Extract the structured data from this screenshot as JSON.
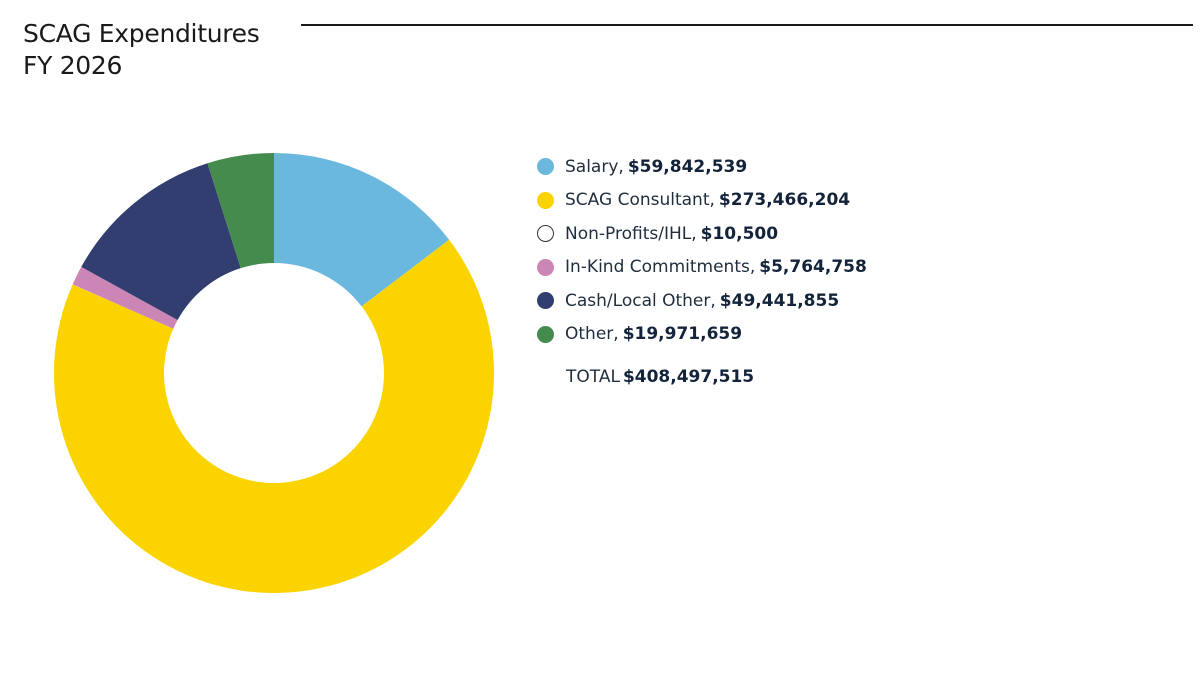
{
  "title_line1": "SCAG Expenditures",
  "title_line2": "FY 2026",
  "chart_data": {
    "type": "pie",
    "donut": true,
    "title": "SCAG Expenditures FY 2026",
    "legend_position": "right",
    "categories": [
      "Salary",
      "SCAG Consultant",
      "Non-Profits/IHL",
      "In-Kind Commitments",
      "Cash/Local Other",
      "Other"
    ],
    "values": [
      59842539,
      273466204,
      10500,
      5764758,
      49441855,
      19971659
    ],
    "value_labels": [
      "$59,842,539",
      "$273,466,204",
      "$10,500",
      "$5,764,758",
      "$49,441,855",
      "$19,971,659"
    ],
    "colors": [
      "#6ab8de",
      "#fbd400",
      "#ffffff",
      "#cc86b5",
      "#323e6f",
      "#448b4d"
    ],
    "total_label": "TOTAL",
    "total_value": "$408,497,515"
  }
}
